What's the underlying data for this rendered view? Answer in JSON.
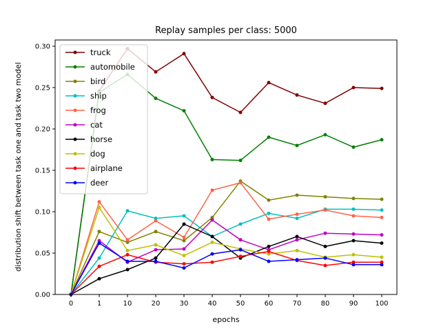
{
  "chart_data": {
    "type": "line",
    "title": "Replay samples per class: 5000",
    "xlabel": "epochs",
    "ylabel": "distribution shift between task one and task two model",
    "categories": [
      "0",
      "1",
      "10",
      "20",
      "30",
      "40",
      "50",
      "60",
      "70",
      "80",
      "90",
      "100"
    ],
    "ylim": [
      0,
      0.3
    ],
    "yticks": [
      "0.00",
      "0.05",
      "0.10",
      "0.15",
      "0.20",
      "0.25",
      "0.30"
    ],
    "grid": false,
    "legend_position": "top-left",
    "series": [
      {
        "name": "truck",
        "color": "#800000",
        "values": [
          0.0,
          0.246,
          0.297,
          0.269,
          0.291,
          0.238,
          0.22,
          0.256,
          0.241,
          0.231,
          0.25,
          0.249
        ]
      },
      {
        "name": "automobile",
        "color": "#008000",
        "values": [
          0.0,
          0.244,
          0.266,
          0.237,
          0.222,
          0.163,
          0.162,
          0.19,
          0.18,
          0.193,
          0.178,
          0.187
        ]
      },
      {
        "name": "bird",
        "color": "#808000",
        "values": [
          0.0,
          0.076,
          0.063,
          0.076,
          0.065,
          0.093,
          0.137,
          0.114,
          0.12,
          0.118,
          0.116,
          0.115
        ]
      },
      {
        "name": "ship",
        "color": "#00bfbf",
        "values": [
          0.0,
          0.044,
          0.101,
          0.092,
          0.095,
          0.07,
          0.085,
          0.098,
          0.092,
          0.103,
          0.103,
          0.102
        ]
      },
      {
        "name": "frog",
        "color": "#ff6347",
        "values": [
          0.0,
          0.112,
          0.066,
          0.089,
          0.069,
          0.126,
          0.135,
          0.091,
          0.097,
          0.102,
          0.095,
          0.093
        ]
      },
      {
        "name": "cat",
        "color": "#bf00bf",
        "values": [
          0.0,
          0.065,
          0.039,
          0.054,
          0.055,
          0.09,
          0.066,
          0.054,
          0.066,
          0.074,
          0.073,
          0.072
        ]
      },
      {
        "name": "horse",
        "color": "#000000",
        "values": [
          0.0,
          0.019,
          0.03,
          0.044,
          0.085,
          0.07,
          0.044,
          0.058,
          0.07,
          0.058,
          0.065,
          0.062
        ]
      },
      {
        "name": "dog",
        "color": "#bfbf00",
        "values": [
          0.0,
          0.105,
          0.053,
          0.06,
          0.047,
          0.063,
          0.055,
          0.049,
          0.053,
          0.045,
          0.048,
          0.045
        ]
      },
      {
        "name": "airplane",
        "color": "#ff0000",
        "values": [
          0.0,
          0.034,
          0.048,
          0.039,
          0.037,
          0.039,
          0.046,
          0.052,
          0.041,
          0.035,
          0.039,
          0.039
        ]
      },
      {
        "name": "deer",
        "color": "#0000ff",
        "values": [
          0.0,
          0.062,
          0.04,
          0.04,
          0.032,
          0.049,
          0.054,
          0.04,
          0.042,
          0.044,
          0.036,
          0.036
        ]
      }
    ]
  }
}
